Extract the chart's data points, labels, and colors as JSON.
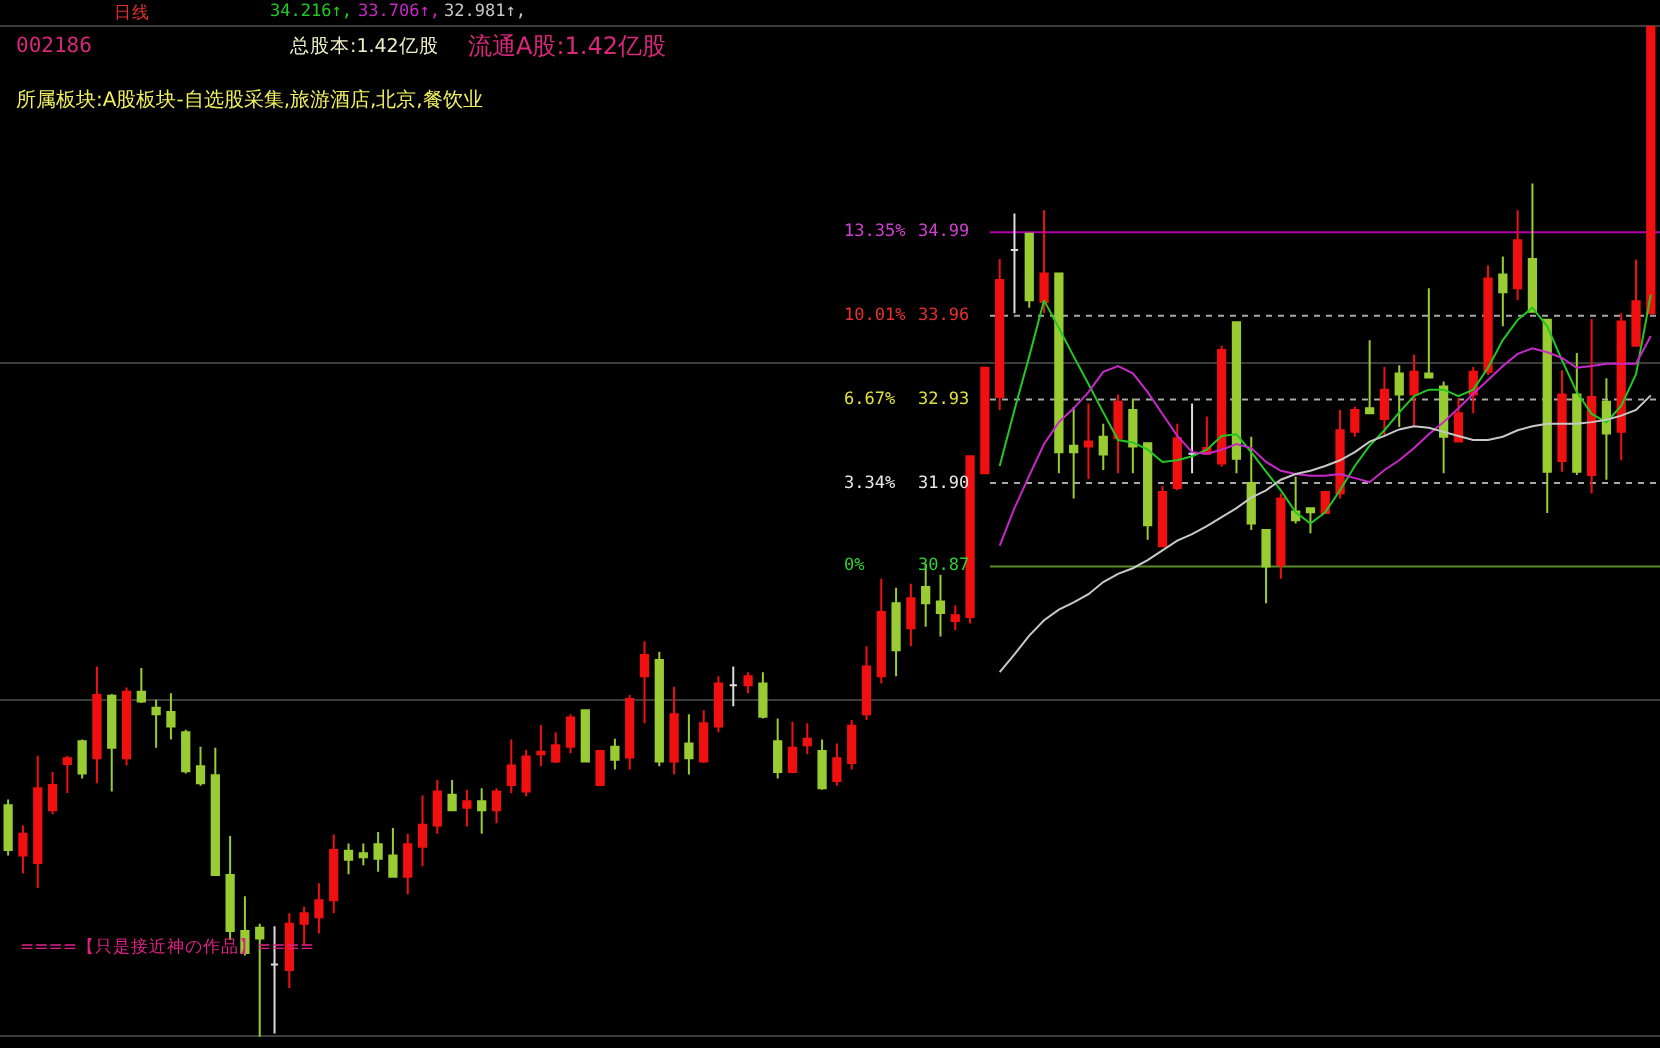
{
  "chart_data": {
    "type": "candlestick",
    "title": "日线",
    "categories": [
      null,
      null,
      null,
      null,
      null,
      null,
      null,
      null,
      null,
      null,
      null,
      null,
      null,
      null,
      null,
      null,
      null,
      null,
      null,
      null,
      null,
      null,
      null,
      null,
      null,
      null,
      null,
      null,
      null,
      null,
      null,
      null,
      null,
      null,
      null,
      null,
      null,
      null,
      null,
      null,
      null,
      null,
      null,
      null,
      null,
      null,
      null,
      null,
      null,
      null,
      null,
      null,
      null,
      null,
      null,
      null,
      null,
      null,
      null,
      null,
      null,
      null,
      null,
      null,
      null,
      null,
      null,
      null,
      null,
      null,
      null,
      null,
      null,
      null,
      null,
      null,
      null,
      null,
      null,
      null,
      null,
      null,
      null,
      null,
      null,
      null,
      null,
      null,
      null,
      null,
      null,
      null,
      null,
      null,
      null,
      null,
      null,
      null,
      null,
      null,
      null,
      null,
      null,
      null,
      null,
      null,
      null,
      null,
      null,
      null,
      null,
      null
    ],
    "ohlc": [
      [
        27.93,
        28.0,
        27.31,
        27.38
      ],
      [
        27.31,
        27.68,
        27.09,
        27.58
      ],
      [
        27.22,
        28.54,
        26.91,
        28.14
      ],
      [
        27.87,
        28.34,
        27.82,
        28.18
      ],
      [
        28.44,
        28.54,
        28.08,
        28.51
      ],
      [
        28.72,
        28.74,
        28.26,
        28.32
      ],
      [
        28.51,
        29.64,
        28.2,
        29.29
      ],
      [
        29.28,
        29.3,
        28.1,
        28.64
      ],
      [
        28.51,
        29.38,
        28.42,
        29.33
      ],
      [
        29.33,
        29.62,
        29.19,
        29.21
      ],
      [
        29.13,
        29.23,
        28.64,
        29.05
      ],
      [
        29.08,
        29.31,
        28.74,
        28.9
      ],
      [
        28.83,
        28.86,
        28.32,
        28.35
      ],
      [
        28.41,
        28.65,
        28.17,
        28.2
      ],
      [
        28.3,
        28.64,
        27.06,
        27.07
      ],
      [
        27.07,
        27.55,
        26.27,
        26.38
      ],
      [
        26.38,
        26.81,
        26.08,
        26.11
      ],
      [
        26.42,
        26.47,
        25.08,
        26.29
      ],
      [
        25.97,
        26.44,
        25.12,
        25.97
      ],
      [
        25.9,
        26.6,
        25.68,
        26.47
      ],
      [
        26.47,
        26.68,
        26.21,
        26.6
      ],
      [
        26.55,
        26.97,
        26.35,
        26.76
      ],
      [
        26.76,
        27.57,
        26.6,
        27.38
      ],
      [
        27.37,
        27.46,
        27.08,
        27.26
      ],
      [
        27.34,
        27.46,
        27.19,
        27.29
      ],
      [
        27.45,
        27.6,
        27.11,
        27.27
      ],
      [
        27.31,
        27.65,
        27.05,
        27.05
      ],
      [
        27.05,
        27.58,
        26.83,
        27.45
      ],
      [
        27.42,
        28.05,
        27.18,
        27.69
      ],
      [
        27.68,
        28.24,
        27.58,
        28.1
      ],
      [
        28.06,
        28.24,
        27.87,
        27.87
      ],
      [
        27.9,
        28.12,
        27.67,
        27.98
      ],
      [
        27.98,
        28.14,
        27.58,
        27.87
      ],
      [
        27.87,
        28.14,
        27.71,
        28.1
      ],
      [
        28.18,
        28.74,
        28.08,
        28.42
      ],
      [
        28.1,
        28.61,
        28.04,
        28.53
      ],
      [
        28.56,
        28.92,
        28.41,
        28.59
      ],
      [
        28.47,
        28.83,
        28.45,
        28.67
      ],
      [
        28.65,
        29.05,
        28.57,
        29.01
      ],
      [
        29.1,
        29.1,
        28.47,
        28.47
      ],
      [
        28.18,
        28.6,
        28.18,
        28.6
      ],
      [
        28.65,
        28.75,
        28.37,
        28.49
      ],
      [
        28.52,
        29.29,
        28.37,
        29.24
      ],
      [
        29.52,
        29.95,
        28.94,
        29.78
      ],
      [
        29.72,
        29.82,
        28.41,
        28.47
      ],
      [
        28.47,
        29.39,
        28.31,
        29.05
      ],
      [
        28.69,
        29.05,
        28.31,
        28.51
      ],
      [
        28.47,
        29.1,
        28.45,
        28.94
      ],
      [
        28.9,
        29.52,
        28.83,
        29.43
      ],
      [
        29.41,
        29.64,
        29.15,
        29.41
      ],
      [
        29.41,
        29.57,
        29.31,
        29.52
      ],
      [
        29.43,
        29.57,
        29.0,
        29.02
      ],
      [
        28.72,
        29.0,
        28.26,
        28.34
      ],
      [
        28.34,
        28.96,
        28.34,
        28.64
      ],
      [
        28.67,
        28.94,
        28.56,
        28.75
      ],
      [
        28.6,
        28.74,
        28.12,
        28.14
      ],
      [
        28.23,
        28.69,
        28.17,
        28.51
      ],
      [
        28.45,
        28.98,
        28.37,
        28.91
      ],
      [
        29.05,
        29.89,
        28.98,
        29.64
      ],
      [
        29.52,
        30.72,
        29.43,
        30.31
      ],
      [
        30.42,
        30.61,
        29.52,
        29.84
      ],
      [
        30.11,
        30.66,
        29.89,
        30.48
      ],
      [
        30.62,
        30.91,
        30.13,
        30.42
      ],
      [
        30.44,
        30.77,
        30.01,
        30.3
      ],
      [
        30.2,
        30.39,
        30.09,
        30.27
      ],
      [
        30.25,
        32.23,
        30.17,
        32.23
      ],
      [
        32.02,
        33.32,
        32.02,
        33.32
      ],
      [
        32.96,
        34.66,
        32.8,
        34.4
      ],
      [
        34.77,
        35.22,
        33.99,
        34.77
      ],
      [
        34.97,
        34.97,
        34.06,
        34.15
      ],
      [
        34.13,
        35.26,
        33.99,
        34.48
      ],
      [
        34.48,
        34.48,
        32.02,
        32.28
      ],
      [
        32.36,
        32.84,
        31.71,
        32.28
      ],
      [
        32.35,
        32.88,
        31.95,
        32.41
      ],
      [
        32.47,
        32.63,
        32.06,
        32.25
      ],
      [
        32.45,
        32.99,
        32.02,
        32.9
      ],
      [
        32.8,
        32.94,
        32.02,
        32.35
      ],
      [
        32.39,
        32.39,
        31.2,
        31.38
      ],
      [
        31.12,
        31.86,
        31.12,
        31.79
      ],
      [
        31.84,
        32.63,
        31.81,
        32.45
      ],
      [
        32.26,
        32.88,
        32.02,
        32.26
      ],
      [
        32.26,
        32.72,
        32.26,
        32.33
      ],
      [
        32.14,
        33.59,
        32.1,
        33.54
      ],
      [
        33.88,
        33.88,
        32.02,
        32.2
      ],
      [
        31.9,
        32.47,
        31.32,
        31.4
      ],
      [
        31.32,
        31.32,
        30.42,
        30.87
      ],
      [
        30.89,
        31.77,
        30.72,
        31.71
      ],
      [
        31.55,
        31.98,
        31.4,
        31.44
      ],
      [
        31.59,
        31.59,
        31.28,
        31.54
      ],
      [
        31.53,
        31.79,
        31.53,
        31.79
      ],
      [
        31.77,
        32.8,
        31.71,
        32.55
      ],
      [
        32.53,
        32.84,
        32.47,
        32.8
      ],
      [
        32.82,
        33.66,
        32.76,
        32.76
      ],
      [
        32.69,
        33.33,
        32.47,
        33.05
      ],
      [
        33.25,
        33.35,
        32.59,
        32.99
      ],
      [
        32.99,
        33.48,
        32.59,
        33.27
      ],
      [
        33.25,
        34.3,
        33.2,
        33.2
      ],
      [
        33.09,
        33.15,
        32.02,
        32.47
      ],
      [
        32.41,
        32.94,
        32.41,
        32.76
      ],
      [
        32.99,
        33.33,
        32.76,
        33.27
      ],
      [
        33.27,
        34.58,
        33.23,
        34.42
      ],
      [
        34.47,
        34.69,
        33.83,
        34.25
      ],
      [
        34.3,
        35.26,
        34.15,
        34.89
      ],
      [
        34.66,
        35.59,
        34.01,
        34.01
      ],
      [
        33.91,
        33.91,
        31.53,
        32.04
      ],
      [
        32.17,
        33.29,
        32.04,
        32.99
      ],
      [
        32.99,
        33.5,
        32.0,
        32.04
      ],
      [
        32.0,
        33.92,
        31.77,
        32.96
      ],
      [
        32.9,
        33.19,
        31.94,
        32.51
      ],
      [
        32.53,
        33.99,
        32.18,
        33.89
      ],
      [
        33.59,
        34.65,
        33.58,
        34.14
      ],
      [
        33.99,
        37.52,
        33.99,
        37.52
      ]
    ],
    "colors": [
      "#99cc33",
      "#f01010",
      "#f01010",
      "#f01010",
      "#f01010",
      "#99cc33",
      "#f01010",
      "#99cc33",
      "#f01010",
      "#99cc33",
      "#99cc33",
      "#99cc33",
      "#99cc33",
      "#99cc33",
      "#99cc33",
      "#99cc33",
      "#99cc33",
      "#99cc33",
      "#dcdcdc",
      "#f01010",
      "#f01010",
      "#f01010",
      "#f01010",
      "#99cc33",
      "#99cc33",
      "#99cc33",
      "#99cc33",
      "#f01010",
      "#f01010",
      "#f01010",
      "#99cc33",
      "#f01010",
      "#99cc33",
      "#f01010",
      "#f01010",
      "#f01010",
      "#f01010",
      "#f01010",
      "#f01010",
      "#99cc33",
      "#f01010",
      "#99cc33",
      "#f01010",
      "#f01010",
      "#99cc33",
      "#f01010",
      "#99cc33",
      "#f01010",
      "#f01010",
      "#dcdcdc",
      "#f01010",
      "#99cc33",
      "#99cc33",
      "#f01010",
      "#f01010",
      "#99cc33",
      "#f01010",
      "#f01010",
      "#f01010",
      "#f01010",
      "#99cc33",
      "#f01010",
      "#99cc33",
      "#99cc33",
      "#f01010",
      "#f01010",
      "#f01010",
      "#f01010",
      "#dcdcdc",
      "#99cc33",
      "#f01010",
      "#99cc33",
      "#99cc33",
      "#f01010",
      "#99cc33",
      "#f01010",
      "#99cc33",
      "#99cc33",
      "#f01010",
      "#f01010",
      "#dcdcdc",
      "#f01010",
      "#f01010",
      "#99cc33",
      "#99cc33",
      "#99cc33",
      "#f01010",
      "#99cc33",
      "#99cc33",
      "#f01010",
      "#f01010",
      "#f01010",
      "#99cc33",
      "#f01010",
      "#99cc33",
      "#f01010",
      "#99cc33",
      "#99cc33",
      "#f01010",
      "#f01010",
      "#f01010",
      "#99cc33",
      "#f01010",
      "#99cc33",
      "#99cc33",
      "#f01010",
      "#99cc33",
      "#f01010",
      "#99cc33",
      "#f01010",
      "#f01010",
      "#f01010"
    ],
    "series": [
      {
        "type": "line",
        "name": "34.216↑,",
        "color": "#22c822",
        "values": [
          null,
          null,
          null,
          null,
          null,
          null,
          null,
          null,
          null,
          null,
          null,
          null,
          null,
          null,
          null,
          null,
          null,
          null,
          null,
          null,
          null,
          null,
          null,
          null,
          null,
          null,
          null,
          null,
          null,
          null,
          null,
          null,
          null,
          null,
          null,
          null,
          null,
          null,
          null,
          null,
          null,
          null,
          null,
          null,
          null,
          null,
          null,
          null,
          null,
          null,
          null,
          null,
          null,
          null,
          null,
          null,
          null,
          null,
          null,
          null,
          null,
          null,
          null,
          null,
          null,
          null,
          null,
          32.11,
          32.8,
          33.46,
          34.15,
          33.81,
          33.46,
          33.12,
          32.77,
          32.43,
          32.4,
          32.31,
          32.16,
          32.18,
          32.23,
          32.31,
          32.48,
          32.5,
          32.28,
          32.04,
          31.81,
          31.54,
          31.4,
          31.54,
          31.81,
          32.11,
          32.36,
          32.55,
          32.77,
          32.97,
          33.05,
          33.05,
          32.97,
          33.05,
          33.32,
          33.66,
          33.91,
          34.06,
          33.83,
          33.41,
          33.02,
          32.75,
          32.65,
          32.85,
          33.24,
          34.22
        ]
      },
      {
        "type": "line",
        "name": "33.706↑,",
        "color": "#c828c8",
        "values": [
          null,
          null,
          null,
          null,
          null,
          null,
          null,
          null,
          null,
          null,
          null,
          null,
          null,
          null,
          null,
          null,
          null,
          null,
          null,
          null,
          null,
          null,
          null,
          null,
          null,
          null,
          null,
          null,
          null,
          null,
          null,
          null,
          null,
          null,
          null,
          null,
          null,
          null,
          null,
          null,
          null,
          null,
          null,
          null,
          null,
          null,
          null,
          null,
          null,
          null,
          null,
          null,
          null,
          null,
          null,
          null,
          null,
          null,
          null,
          null,
          null,
          null,
          null,
          null,
          null,
          null,
          null,
          31.13,
          31.59,
          31.99,
          32.38,
          32.65,
          32.82,
          33.02,
          33.27,
          33.34,
          33.25,
          33.02,
          32.75,
          32.48,
          32.28,
          32.26,
          32.31,
          32.38,
          32.33,
          32.16,
          32.05,
          32.01,
          31.99,
          31.99,
          32.01,
          31.96,
          31.91,
          32.06,
          32.18,
          32.33,
          32.5,
          32.65,
          32.82,
          33.0,
          33.17,
          33.34,
          33.49,
          33.56,
          33.51,
          33.44,
          33.32,
          33.34,
          33.37,
          33.37,
          33.37,
          33.71
        ]
      },
      {
        "type": "line",
        "name": "32.981↑,",
        "color": "#c8c8c8",
        "values": [
          null,
          null,
          null,
          null,
          null,
          null,
          null,
          null,
          null,
          null,
          null,
          null,
          null,
          null,
          null,
          null,
          null,
          null,
          null,
          null,
          null,
          null,
          null,
          null,
          null,
          null,
          null,
          null,
          null,
          null,
          null,
          null,
          null,
          null,
          null,
          null,
          null,
          null,
          null,
          null,
          null,
          null,
          null,
          null,
          null,
          null,
          null,
          null,
          null,
          null,
          null,
          null,
          null,
          null,
          null,
          null,
          null,
          null,
          null,
          null,
          null,
          null,
          null,
          null,
          null,
          null,
          null,
          29.57,
          29.79,
          30.02,
          30.21,
          30.34,
          30.43,
          30.53,
          30.68,
          30.78,
          30.85,
          30.95,
          31.07,
          31.19,
          31.27,
          31.37,
          31.48,
          31.59,
          31.72,
          31.81,
          31.94,
          32.01,
          32.05,
          32.11,
          32.18,
          32.28,
          32.41,
          32.48,
          32.56,
          32.6,
          32.58,
          32.53,
          32.48,
          32.43,
          32.43,
          32.47,
          32.55,
          32.6,
          32.63,
          32.63,
          32.63,
          32.65,
          32.68,
          32.73,
          32.8,
          32.98
        ]
      }
    ],
    "ylim": [
      24.94,
      37.85
    ],
    "yticks": [
      {
        "value": 37.53,
        "label": null
      },
      {
        "value": 33.38,
        "label": null
      },
      {
        "value": 29.23,
        "label": null
      },
      {
        "value": 25.09,
        "label": null
      }
    ],
    "grid": "y",
    "ref_lines": [
      {
        "axis": "y",
        "value": 34.99,
        "label": "34.99",
        "color": "#b000b0",
        "line_style": "solid"
      },
      {
        "axis": "y",
        "value": 33.96,
        "label": "33.96",
        "color": "#a8a8a8",
        "line_style": "dotted"
      },
      {
        "axis": "y",
        "value": 32.93,
        "label": "32.93",
        "color": "#a8a8a8",
        "line_style": "dotted"
      },
      {
        "axis": "y",
        "value": 31.9,
        "label": "31.90",
        "color": "#a8a8a8",
        "line_style": "dotted"
      },
      {
        "axis": "y",
        "value": 30.87,
        "label": "30.87",
        "color": "#5a8a2a",
        "line_style": "solid"
      }
    ],
    "annotations": [
      "002186",
      "总股本:1.42亿股",
      "流通A股:1.42亿股",
      "所属板块:A股板块-自选股采集,旅游酒店,北京,餐饮业",
      "====【只是接近神の作品】====",
      "13.35%",
      "10.01%",
      "6.67%",
      "3.34%",
      "0%"
    ]
  }
}
